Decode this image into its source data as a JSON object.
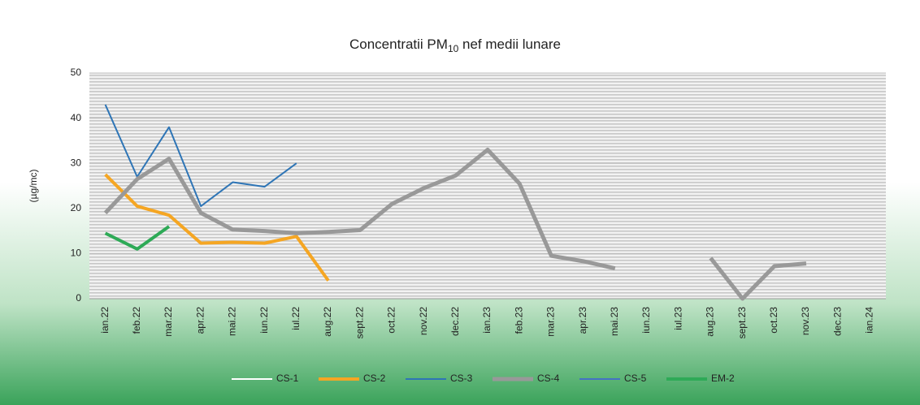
{
  "chart_data": {
    "type": "line",
    "title": {
      "main": "Concentratii PM",
      "sub": "10",
      "rest": " nef medii lunare"
    },
    "y_label": "(µg/mc)",
    "categories": [
      "ian.22",
      "feb.22",
      "mar.22",
      "apr.22",
      "mai.22",
      "iun.22",
      "iul.22",
      "aug.22",
      "sept.22",
      "oct.22",
      "nov.22",
      "dec.22",
      "ian.23",
      "feb.23",
      "mar.23",
      "apr.23",
      "mai.23",
      "iun.23",
      "iul.23",
      "aug.23",
      "sept.23",
      "oct.23",
      "nov.23",
      "dec.23",
      "ian.24"
    ],
    "series": [
      {
        "name": "CS-1",
        "color": "#ffffff",
        "line_width": 2,
        "values": [
          null,
          null,
          null,
          null,
          null,
          null,
          null,
          null,
          null,
          null,
          null,
          null,
          null,
          null,
          null,
          null,
          null,
          null,
          null,
          null,
          null,
          null,
          null,
          null,
          null
        ]
      },
      {
        "name": "CS-2",
        "color": "#f5a623",
        "line_width": 4,
        "values": [
          27.5,
          20.5,
          18.5,
          12.3,
          12.5,
          12.3,
          13.8,
          4,
          null,
          null,
          null,
          null,
          null,
          null,
          null,
          null,
          null,
          null,
          null,
          null,
          null,
          null,
          null,
          null,
          null
        ]
      },
      {
        "name": "CS-3",
        "color": "#2e75b6",
        "line_width": 2,
        "values": [
          43,
          27,
          38,
          20.5,
          25.8,
          24.8,
          30,
          null,
          null,
          null,
          null,
          null,
          null,
          null,
          null,
          null,
          null,
          null,
          null,
          null,
          null,
          null,
          null,
          null,
          null
        ]
      },
      {
        "name": "CS-4",
        "color": "#999999",
        "line_width": 5,
        "values": [
          19,
          26.5,
          31,
          19,
          15.3,
          15,
          14.5,
          14.8,
          15.2,
          21,
          24.5,
          27.3,
          33,
          25.5,
          9.5,
          8.3,
          6.7,
          null,
          null,
          9,
          0,
          7.2,
          7.8,
          null,
          null
        ]
      },
      {
        "name": "CS-5",
        "color": "#4472c4",
        "line_width": 2,
        "values": [
          null,
          null,
          null,
          null,
          null,
          null,
          null,
          null,
          null,
          null,
          null,
          null,
          null,
          null,
          null,
          null,
          null,
          null,
          null,
          null,
          null,
          null,
          null,
          null,
          null
        ]
      },
      {
        "name": "EM-2",
        "color": "#2eaa57",
        "line_width": 4,
        "values": [
          14.5,
          11,
          16,
          null,
          null,
          null,
          null,
          null,
          null,
          null,
          null,
          null,
          null,
          null,
          null,
          null,
          null,
          null,
          null,
          null,
          null,
          null,
          null,
          null,
          null
        ]
      }
    ],
    "ylim": [
      0,
      50
    ],
    "yticks": [
      0,
      10,
      20,
      30,
      40,
      50
    ],
    "grid": true
  }
}
